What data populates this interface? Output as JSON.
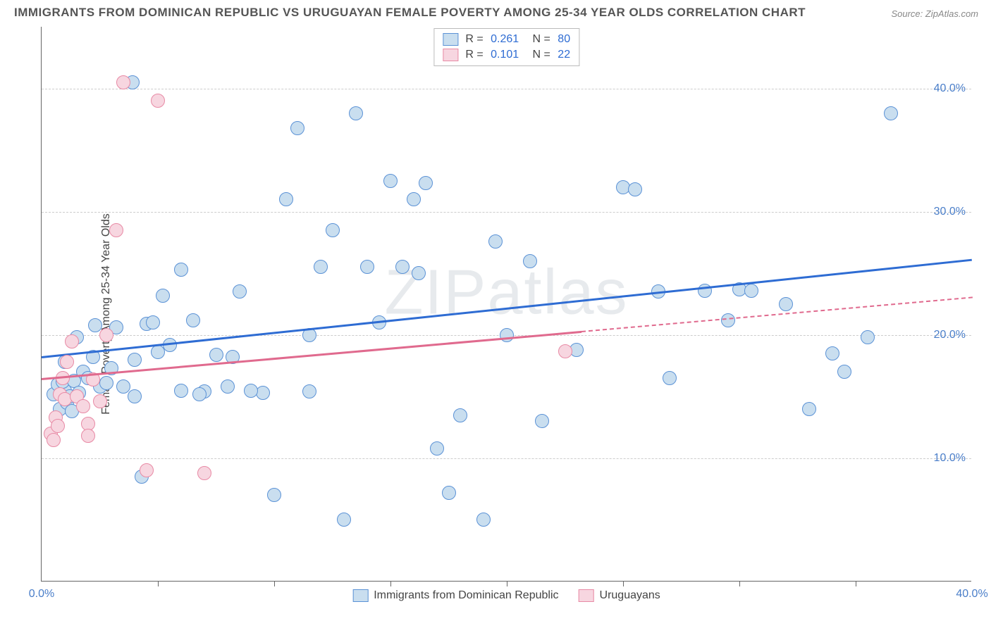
{
  "title": "IMMIGRANTS FROM DOMINICAN REPUBLIC VS URUGUAYAN FEMALE POVERTY AMONG 25-34 YEAR OLDS CORRELATION CHART",
  "source": "Source: ZipAtlas.com",
  "watermark": "ZIPatlas",
  "y_axis_label": "Female Poverty Among 25-34 Year Olds",
  "xlim": [
    0,
    40
  ],
  "ylim": [
    0,
    45
  ],
  "y_ticks": [
    10,
    20,
    30,
    40
  ],
  "y_tick_labels": [
    "10.0%",
    "20.0%",
    "30.0%",
    "40.0%"
  ],
  "x_ticks_minor": [
    5,
    10,
    15,
    20,
    25,
    30,
    35
  ],
  "x_tick_labels": [
    {
      "pos": 0,
      "label": "0.0%"
    },
    {
      "pos": 40,
      "label": "40.0%"
    }
  ],
  "series": [
    {
      "name": "Immigrants from Dominican Republic",
      "short": "dominican",
      "fill": "#c9deef",
      "stroke": "#5b92d6",
      "trend_color": "#2e6cd3",
      "dashed": false,
      "r": "0.261",
      "n": "80",
      "trend": {
        "x1": 0,
        "y1": 18.3,
        "x2": 40,
        "y2": 26.2
      },
      "points": [
        [
          0.5,
          15.2
        ],
        [
          0.7,
          16.0
        ],
        [
          0.8,
          14.0
        ],
        [
          1.0,
          15.5
        ],
        [
          1.1,
          14.5
        ],
        [
          0.9,
          16.2
        ],
        [
          1.3,
          13.8
        ],
        [
          1.0,
          17.8
        ],
        [
          1.4,
          16.3
        ],
        [
          1.2,
          15.0
        ],
        [
          1.6,
          15.3
        ],
        [
          1.8,
          17.0
        ],
        [
          2.2,
          18.2
        ],
        [
          2.0,
          16.5
        ],
        [
          2.5,
          15.8
        ],
        [
          2.8,
          16.1
        ],
        [
          2.3,
          20.8
        ],
        [
          1.5,
          19.8
        ],
        [
          3.0,
          17.3
        ],
        [
          3.5,
          15.8
        ],
        [
          3.2,
          20.6
        ],
        [
          4.0,
          18.0
        ],
        [
          4.5,
          20.9
        ],
        [
          5.0,
          18.6
        ],
        [
          4.8,
          21.0
        ],
        [
          5.5,
          19.2
        ],
        [
          5.2,
          23.2
        ],
        [
          6.0,
          25.3
        ],
        [
          6.5,
          21.2
        ],
        [
          7.0,
          15.4
        ],
        [
          7.5,
          18.4
        ],
        [
          8.0,
          15.8
        ],
        [
          8.5,
          23.5
        ],
        [
          6.0,
          15.5
        ],
        [
          4.0,
          15.0
        ],
        [
          9.5,
          15.3
        ],
        [
          10.0,
          7.0
        ],
        [
          10.5,
          31.0
        ],
        [
          11.0,
          36.8
        ],
        [
          11.5,
          20.0
        ],
        [
          12.0,
          25.5
        ],
        [
          12.5,
          28.5
        ],
        [
          13.0,
          5.0
        ],
        [
          13.5,
          38.0
        ],
        [
          14.0,
          25.5
        ],
        [
          15.0,
          32.5
        ],
        [
          15.5,
          25.5
        ],
        [
          16.0,
          31.0
        ],
        [
          16.5,
          32.3
        ],
        [
          17.0,
          10.8
        ],
        [
          17.5,
          7.2
        ],
        [
          18.0,
          13.5
        ],
        [
          19.0,
          5.0
        ],
        [
          19.5,
          27.6
        ],
        [
          20.0,
          20.0
        ],
        [
          21.0,
          26.0
        ],
        [
          21.5,
          13.0
        ],
        [
          23.0,
          18.8
        ],
        [
          25.0,
          32.0
        ],
        [
          25.5,
          31.8
        ],
        [
          26.5,
          23.5
        ],
        [
          27.0,
          16.5
        ],
        [
          28.5,
          23.6
        ],
        [
          29.5,
          21.2
        ],
        [
          30.0,
          23.7
        ],
        [
          30.5,
          23.6
        ],
        [
          32.0,
          22.5
        ],
        [
          33.0,
          14.0
        ],
        [
          34.0,
          18.5
        ],
        [
          34.5,
          17.0
        ],
        [
          35.5,
          19.8
        ],
        [
          36.5,
          38.0
        ],
        [
          6.8,
          15.2
        ],
        [
          3.9,
          40.5
        ],
        [
          9.0,
          15.5
        ],
        [
          11.5,
          15.4
        ],
        [
          8.2,
          18.2
        ],
        [
          14.5,
          21.0
        ],
        [
          16.2,
          25.0
        ],
        [
          4.3,
          8.5
        ]
      ]
    },
    {
      "name": "Uruguayans",
      "short": "uruguayan",
      "fill": "#f7d6e0",
      "stroke": "#e88aa5",
      "trend_color": "#e06a8e",
      "dashed": true,
      "r": "0.101",
      "n": "22",
      "trend": {
        "x1": 0,
        "y1": 16.5,
        "x2": 40,
        "y2": 23.1
      },
      "points": [
        [
          0.4,
          12.0
        ],
        [
          0.5,
          11.5
        ],
        [
          0.6,
          13.3
        ],
        [
          0.7,
          12.6
        ],
        [
          0.8,
          15.2
        ],
        [
          0.9,
          16.5
        ],
        [
          1.0,
          14.8
        ],
        [
          1.1,
          17.8
        ],
        [
          1.3,
          19.5
        ],
        [
          1.5,
          15.0
        ],
        [
          1.8,
          14.2
        ],
        [
          2.0,
          12.8
        ],
        [
          2.2,
          16.4
        ],
        [
          2.5,
          14.6
        ],
        [
          2.8,
          20.0
        ],
        [
          3.2,
          28.5
        ],
        [
          3.5,
          40.5
        ],
        [
          4.5,
          9.0
        ],
        [
          5.0,
          39.0
        ],
        [
          7.0,
          8.8
        ],
        [
          2.0,
          11.8
        ],
        [
          22.5,
          18.7
        ]
      ]
    }
  ],
  "point_radius": 10,
  "background_color": "#ffffff"
}
